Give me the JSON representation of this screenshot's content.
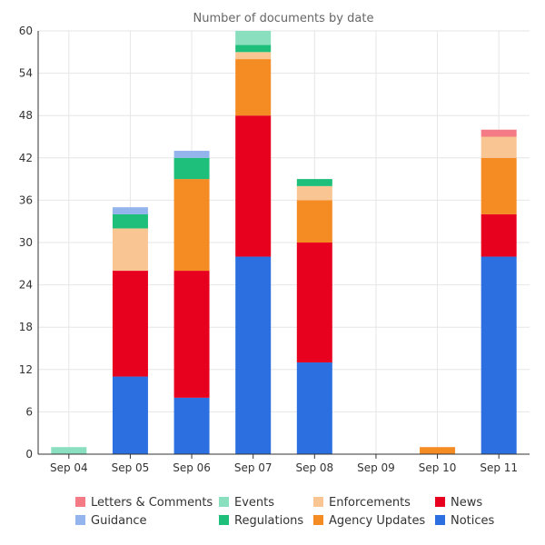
{
  "chart_data": {
    "type": "bar",
    "stacked": true,
    "title": "Number of documents by date",
    "xlabel": "",
    "ylabel": "",
    "ylim": [
      0,
      60
    ],
    "yticks": [
      0,
      6,
      12,
      18,
      24,
      30,
      36,
      42,
      48,
      54,
      60
    ],
    "grid": true,
    "legend_position": "bottom",
    "categories": [
      "Sep 04",
      "Sep 05",
      "Sep 06",
      "Sep 07",
      "Sep 08",
      "Sep 09",
      "Sep 10",
      "Sep 11"
    ],
    "series": [
      {
        "name": "Notices",
        "color": "#2b6fe0",
        "values": [
          0,
          11,
          8,
          28,
          13,
          0,
          0,
          28
        ]
      },
      {
        "name": "News",
        "color": "#e8001f",
        "values": [
          0,
          15,
          18,
          20,
          17,
          0,
          0,
          6
        ]
      },
      {
        "name": "Agency Updates",
        "color": "#f58b23",
        "values": [
          0,
          0,
          13,
          8,
          6,
          0,
          1,
          8
        ]
      },
      {
        "name": "Enforcements",
        "color": "#f8c593",
        "values": [
          0,
          6,
          0,
          1,
          2,
          0,
          0,
          3
        ]
      },
      {
        "name": "Regulations",
        "color": "#1dbf7a",
        "values": [
          0,
          2,
          3,
          1,
          1,
          0,
          0,
          0
        ]
      },
      {
        "name": "Events",
        "color": "#8adfbf",
        "values": [
          1,
          0,
          0,
          2,
          0,
          0,
          0,
          0
        ]
      },
      {
        "name": "Guidance",
        "color": "#93b4ec",
        "values": [
          0,
          1,
          1,
          0,
          0,
          0,
          0,
          0
        ]
      },
      {
        "name": "Letters & Comments",
        "color": "#f47b86",
        "values": [
          0,
          0,
          0,
          0,
          0,
          0,
          0,
          1
        ]
      }
    ],
    "legend_order": [
      "Letters & Comments",
      "Events",
      "Enforcements",
      "News",
      "Guidance",
      "Regulations",
      "Agency Updates",
      "Notices"
    ]
  }
}
